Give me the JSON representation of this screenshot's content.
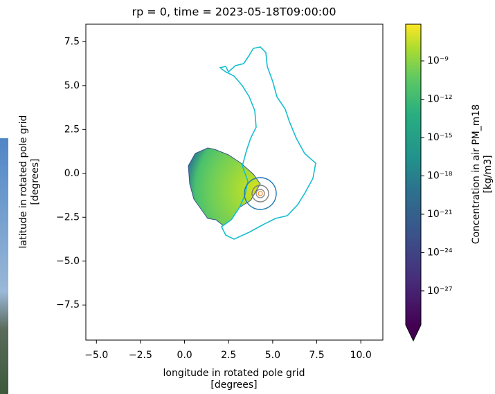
{
  "chart_data": {
    "type": "map",
    "title": "rp = 0, time = 2023-05-18T09:00:00",
    "xlabel": [
      "longitude in rotated pole grid",
      "[degrees]"
    ],
    "ylabel": [
      "latitude in rotated pole grid",
      "[degrees]"
    ],
    "xlim": [
      -5.6,
      11.25
    ],
    "ylim": [
      -9.5,
      8.5
    ],
    "xticks": [
      {
        "value": -5,
        "label": "−5.0"
      },
      {
        "value": -2.5,
        "label": "−2.5"
      },
      {
        "value": 0,
        "label": "0.0"
      },
      2.5,
      {
        "value": 5,
        "label": "5.0"
      },
      7.5,
      {
        "value": 10,
        "label": "10.0"
      }
    ],
    "yticks": [
      {
        "value": -7.5,
        "label": "−7.5"
      },
      {
        "value": -5,
        "label": "−5.0"
      },
      {
        "value": -2.5,
        "label": "−2.5"
      },
      {
        "value": 0,
        "label": "0.0"
      },
      2.5,
      {
        "value": 5,
        "label": "5.0"
      },
      7.5
    ],
    "colorbar": {
      "label": [
        "Concentration in air PM_m18",
        "[kg/m3]"
      ],
      "log_scale": true,
      "lim": [
        2.2e-30,
        7.4e-07
      ],
      "ticks": [
        {
          "value": 1e-27,
          "label": "10⁻²⁷"
        },
        {
          "value": 1e-24,
          "label": "10⁻²⁴"
        },
        {
          "value": 1e-21,
          "label": "10⁻²¹"
        },
        {
          "value": 1e-18,
          "label": "10⁻¹⁸"
        },
        {
          "value": 1e-15,
          "label": "10⁻¹⁵"
        },
        {
          "value": 1e-12,
          "label": "10⁻¹²"
        },
        {
          "value": 1e-09,
          "label": "10⁻⁹"
        }
      ]
    }
  }
}
